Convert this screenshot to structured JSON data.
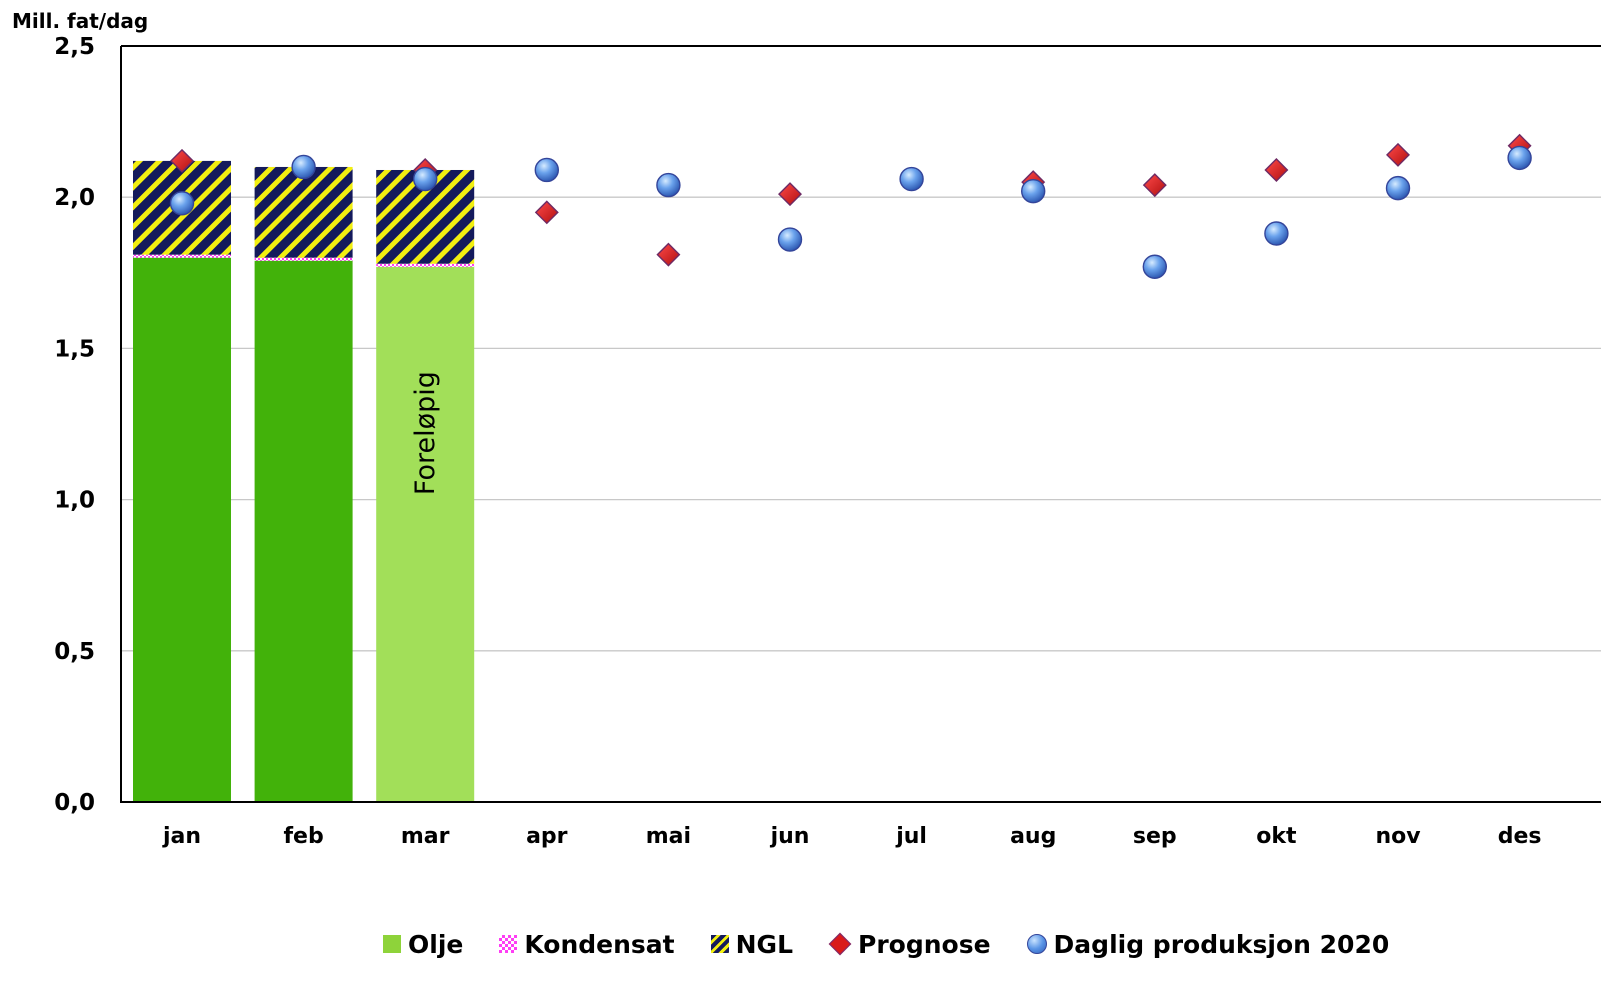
{
  "chart_data": {
    "type": "bar",
    "ylabel": "Mill. fat/dag",
    "ylim": [
      0,
      2.5
    ],
    "yticks": [
      "0,0",
      "0,5",
      "1,0",
      "1,5",
      "2,0",
      "2,5"
    ],
    "categories": [
      "jan",
      "feb",
      "mar",
      "apr",
      "mai",
      "jun",
      "jul",
      "aug",
      "sep",
      "okt",
      "nov",
      "des"
    ],
    "grid": true,
    "legend_position": "bottom",
    "bar_annotation": "Foreløpig",
    "series": [
      {
        "name": "Olje",
        "kind": "stacked-bar",
        "values": [
          1.8,
          1.79,
          1.77,
          null,
          null,
          null,
          null,
          null,
          null,
          null,
          null,
          null
        ],
        "colors": [
          "#42b20a",
          "#42b20a",
          "#a2df59"
        ]
      },
      {
        "name": "Kondensat",
        "kind": "stacked-bar",
        "values": [
          0.01,
          0.01,
          0.01,
          null,
          null,
          null,
          null,
          null,
          null,
          null,
          null,
          null
        ],
        "color": "#ff3df5"
      },
      {
        "name": "NGL",
        "kind": "stacked-bar",
        "values": [
          0.31,
          0.3,
          0.31,
          null,
          null,
          null,
          null,
          null,
          null,
          null,
          null,
          null
        ],
        "color": "#141a5c"
      },
      {
        "name": "Prognose",
        "kind": "marker-diamond",
        "values": [
          2.12,
          2.1,
          2.09,
          1.95,
          1.81,
          2.01,
          2.06,
          2.05,
          2.04,
          2.09,
          2.14,
          2.17
        ],
        "color": "#d91a1a"
      },
      {
        "name": "Daglig produksjon 2020",
        "kind": "marker-circle",
        "values": [
          1.98,
          2.1,
          2.06,
          2.09,
          2.04,
          1.86,
          2.06,
          2.02,
          1.77,
          1.88,
          2.03,
          2.13
        ],
        "color": "#5a95e6"
      }
    ]
  }
}
